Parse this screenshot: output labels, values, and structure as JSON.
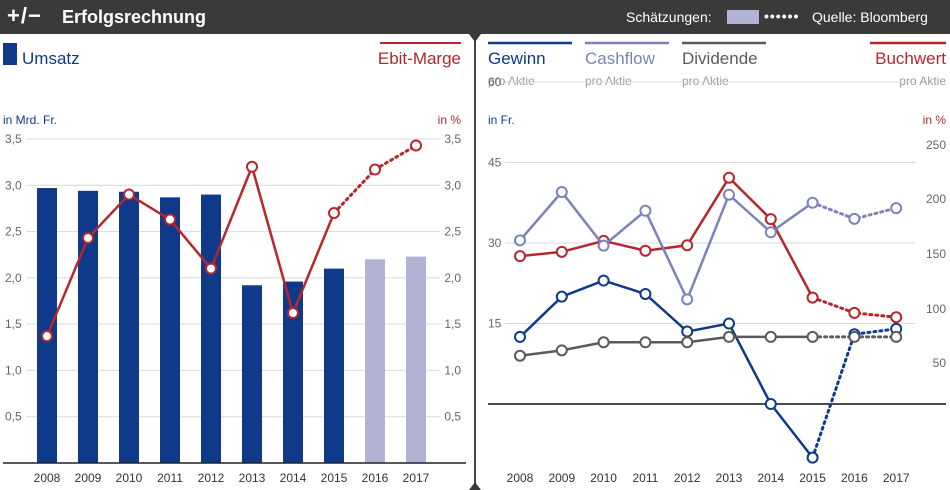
{
  "header": {
    "logo": "+/−",
    "title": "Erfolgsrechnung",
    "estimates_label": "Schätzungen:",
    "dots": "••••••",
    "source": "Quelle: Bloomberg"
  },
  "colors": {
    "navy": "#0f3a8a",
    "lavender": "#b2b2d4",
    "red": "#b5272d",
    "periwinkle": "#7b83b9",
    "gray": "#5a5a5a",
    "axis_gray": "#666666",
    "grid": "#d9d9d9",
    "header_bg": "#3a3a3a"
  },
  "chart_data": [
    {
      "type": "bar",
      "legend_left": "Umsatz",
      "legend_right": "Ebit-Marge",
      "ylabel_left": "in Mrd. Fr.",
      "ylabel_right": "in %",
      "categories": [
        "2008",
        "2009",
        "2010",
        "2011",
        "2012",
        "2013",
        "2014",
        "2015",
        "2016",
        "2017"
      ],
      "ylim": [
        0,
        3.5
      ],
      "yticks": [
        0.5,
        1.0,
        1.5,
        2.0,
        2.5,
        3.0,
        3.5
      ],
      "ytick_labels": [
        "0,5",
        "1,0",
        "1,5",
        "2,0",
        "2,5",
        "3,0",
        "3,5"
      ],
      "series": [
        {
          "name": "Umsatz",
          "kind": "bar",
          "values": [
            2.97,
            2.94,
            2.93,
            2.87,
            2.9,
            1.92,
            1.96,
            2.1,
            2.2,
            2.23
          ],
          "estimate_from_index": 8
        },
        {
          "name": "Ebit-Marge",
          "kind": "line",
          "values": [
            1.37,
            2.43,
            2.9,
            2.63,
            2.1,
            3.2,
            1.62,
            2.7,
            3.17,
            3.43
          ],
          "estimate_from_index": 7
        }
      ],
      "grid": true
    },
    {
      "type": "line",
      "ylabel_left": "in Fr.",
      "ylabel_right": "in %",
      "categories": [
        "2008",
        "2009",
        "2010",
        "2011",
        "2012",
        "2013",
        "2014",
        "2015",
        "2016",
        "2017"
      ],
      "ylim_left": [
        -15,
        75
      ],
      "yticks_left": [
        15,
        30,
        45,
        60,
        75
      ],
      "ylim_right": [
        -50,
        250
      ],
      "yticks_right": [
        50,
        100,
        150,
        200,
        250
      ],
      "legends": [
        {
          "name": "Gewinn",
          "sub": "pro Aktie"
        },
        {
          "name": "Cashflow",
          "sub": "pro Aktie"
        },
        {
          "name": "Dividende",
          "sub": "pro Aktie"
        },
        {
          "name": "Buchwert",
          "sub": "pro Aktie"
        }
      ],
      "series": [
        {
          "name": "Buchwert",
          "axis": "right",
          "values": [
            148,
            152,
            162,
            153,
            158,
            220,
            182,
            110,
            96,
            92
          ],
          "estimate_from_index": 7
        },
        {
          "name": "Cashflow",
          "axis": "left",
          "values": [
            30.5,
            39.5,
            29.5,
            36.0,
            19.5,
            39.0,
            32.0,
            37.5,
            34.5,
            36.5
          ],
          "estimate_from_index": 7
        },
        {
          "name": "Gewinn",
          "axis": "left",
          "values": [
            12.5,
            20.0,
            23.0,
            20.5,
            13.5,
            15.0,
            0.0,
            -10.0,
            13.0,
            14.0
          ],
          "estimate_from_index": 7
        },
        {
          "name": "Dividende",
          "axis": "left",
          "values": [
            9.0,
            10.0,
            11.5,
            11.5,
            11.5,
            12.5,
            12.5,
            12.5,
            12.5,
            12.5
          ],
          "estimate_from_index": 7
        }
      ],
      "grid": true
    }
  ]
}
